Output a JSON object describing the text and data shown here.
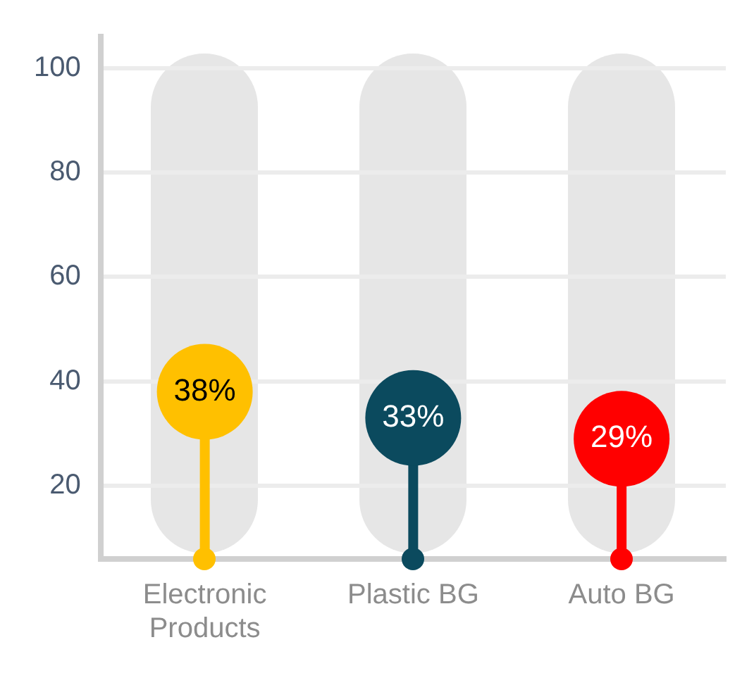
{
  "chart_data": {
    "type": "lollipop",
    "categories": [
      "Electronic Products",
      "Plastic BG",
      "Auto BG"
    ],
    "values": [
      38,
      33,
      29
    ],
    "value_labels": [
      "38%",
      "33%",
      "29%"
    ],
    "colors": [
      "#ffc000",
      "#0b4a5e",
      "#ff0000"
    ],
    "ylim": [
      6,
      106
    ],
    "yticks": [
      20,
      40,
      60,
      80,
      100
    ],
    "grid": "y",
    "legend": false
  }
}
